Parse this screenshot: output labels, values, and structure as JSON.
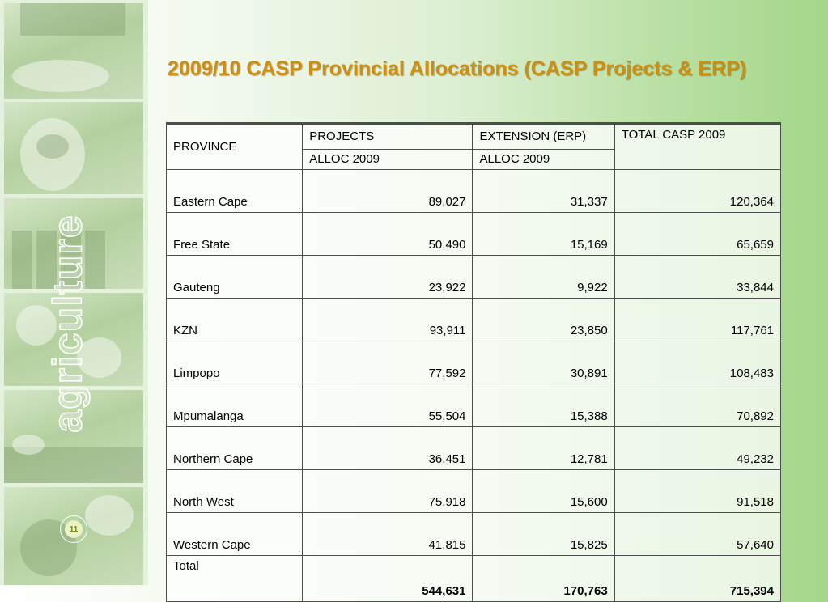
{
  "slide": {
    "title": "2009/10 CASP Provincial Allocations (CASP Projects & ERP)",
    "side_word": "agriculture",
    "page_number": "11"
  },
  "table": {
    "headers": {
      "province": "PROVINCE",
      "projects": "PROJECTS",
      "extension": "EXTENSION (ERP)",
      "total": "TOTAL CASP 2009",
      "projects_sub": "ALLOC 2009",
      "extension_sub": "ALLOC 2009"
    },
    "rows": [
      {
        "province": "Eastern Cape",
        "projects": "89,027",
        "extension": "31,337",
        "total": "120,364"
      },
      {
        "province": "Free State",
        "projects": "50,490",
        "extension": "15,169",
        "total": "65,659"
      },
      {
        "province": "Gauteng",
        "projects": "23,922",
        "extension": "9,922",
        "total": "33,844"
      },
      {
        "province": "KZN",
        "projects": "93,911",
        "extension": "23,850",
        "total": "117,761"
      },
      {
        "province": "Limpopo",
        "projects": "77,592",
        "extension": "30,891",
        "total": "108,483"
      },
      {
        "province": "Mpumalanga",
        "projects": "55,504",
        "extension": "15,388",
        "total": "70,892"
      },
      {
        "province": "Northern Cape",
        "projects": "36,451",
        "extension": "12,781",
        "total": "49,232"
      },
      {
        "province": "North West",
        "projects": "75,918",
        "extension": "15,600",
        "total": "91,518"
      },
      {
        "province": "Western Cape",
        "projects": "41,815",
        "extension": "15,825",
        "total": "57,640"
      }
    ],
    "total_row": {
      "label": "Total",
      "projects": "544,631",
      "extension": "170,763",
      "total": "715,394"
    }
  },
  "colors": {
    "title": "#cf8e0c",
    "background_right": "#a5d68a",
    "strip": "#e4f1dc"
  }
}
